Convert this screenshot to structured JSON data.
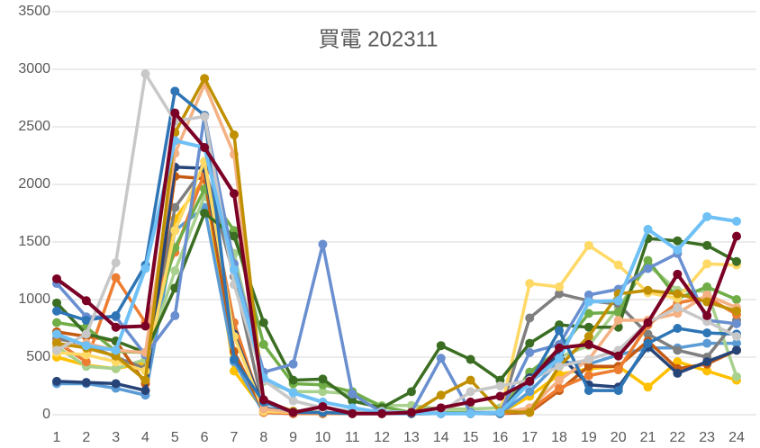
{
  "chart_data": {
    "type": "line",
    "title": "買電 202311",
    "categories": [
      1,
      2,
      3,
      4,
      5,
      6,
      7,
      8,
      9,
      10,
      11,
      12,
      13,
      14,
      15,
      16,
      17,
      18,
      19,
      20,
      21,
      22,
      23,
      24
    ],
    "ylim": [
      0,
      3500
    ],
    "yticks": [
      0,
      500,
      1000,
      1500,
      2000,
      2500,
      3000,
      3500
    ],
    "grid": true,
    "series": [
      {
        "color": "#ffc000",
        "values": [
          500,
          430,
          400,
          450,
          1700,
          2050,
          380,
          40,
          10,
          10,
          10,
          10,
          10,
          10,
          10,
          10,
          160,
          350,
          400,
          420,
          240,
          460,
          380,
          300
        ]
      },
      {
        "color": "#5b9bd5",
        "values": [
          270,
          270,
          230,
          170,
          1600,
          1800,
          460,
          20,
          10,
          10,
          10,
          10,
          10,
          10,
          10,
          10,
          200,
          460,
          440,
          520,
          580,
          580,
          620,
          620
        ]
      },
      {
        "color": "#a9d18e",
        "values": [
          590,
          420,
          400,
          480,
          1250,
          1900,
          1400,
          290,
          200,
          200,
          180,
          80,
          80,
          50,
          50,
          60,
          350,
          500,
          600,
          930,
          1300,
          1080,
          1070,
          330
        ]
      },
      {
        "color": "#7f7f7f",
        "values": [
          660,
          610,
          500,
          400,
          1800,
          2150,
          1200,
          50,
          20,
          20,
          10,
          10,
          10,
          10,
          10,
          20,
          840,
          1050,
          990,
          960,
          700,
          560,
          500,
          820
        ]
      },
      {
        "color": "#c55a11",
        "values": [
          720,
          680,
          640,
          270,
          2070,
          2050,
          550,
          30,
          10,
          10,
          10,
          10,
          10,
          10,
          10,
          10,
          20,
          210,
          420,
          420,
          640,
          400,
          440,
          560
        ]
      },
      {
        "color": "#ed7d31",
        "values": [
          630,
          460,
          1190,
          800,
          1410,
          2100,
          800,
          20,
          10,
          10,
          10,
          10,
          10,
          10,
          10,
          10,
          40,
          230,
          340,
          390,
          780,
          970,
          1020,
          870
        ]
      },
      {
        "color": "#70ad47",
        "values": [
          800,
          760,
          550,
          540,
          1450,
          1960,
          1600,
          610,
          270,
          260,
          200,
          70,
          20,
          20,
          20,
          20,
          370,
          560,
          880,
          890,
          1340,
          1010,
          1110,
          1000
        ]
      },
      {
        "color": "#264478",
        "values": [
          290,
          280,
          270,
          210,
          2150,
          2140,
          700,
          60,
          20,
          20,
          10,
          10,
          10,
          10,
          10,
          20,
          320,
          520,
          260,
          240,
          590,
          360,
          460,
          560
        ]
      },
      {
        "color": "#ffd966",
        "values": [
          540,
          520,
          460,
          380,
          1600,
          2200,
          680,
          30,
          20,
          20,
          10,
          10,
          10,
          10,
          10,
          10,
          1140,
          1110,
          1470,
          1300,
          1060,
          1010,
          1310,
          1300
        ]
      },
      {
        "color": "#3b6e22",
        "values": [
          970,
          700,
          640,
          540,
          1100,
          1750,
          1550,
          800,
          300,
          310,
          120,
          60,
          200,
          600,
          480,
          300,
          620,
          780,
          760,
          760,
          1530,
          1510,
          1470,
          1330
        ]
      },
      {
        "color": "#6a8fd0",
        "values": [
          1140,
          850,
          850,
          520,
          860,
          2600,
          1310,
          370,
          440,
          1480,
          180,
          20,
          20,
          490,
          20,
          20,
          540,
          610,
          1040,
          1090,
          1270,
          1400,
          820,
          790
        ]
      },
      {
        "color": "#f4b183",
        "values": [
          580,
          620,
          560,
          540,
          2270,
          2870,
          2260,
          50,
          20,
          20,
          10,
          10,
          10,
          10,
          10,
          20,
          60,
          300,
          480,
          820,
          820,
          880,
          1040,
          930
        ]
      },
      {
        "color": "#c09000",
        "values": [
          620,
          580,
          510,
          300,
          2450,
          2920,
          2430,
          120,
          30,
          20,
          10,
          10,
          10,
          170,
          300,
          30,
          20,
          420,
          680,
          1050,
          1080,
          1050,
          980,
          900
        ]
      },
      {
        "color": "#2e75b6",
        "values": [
          900,
          820,
          860,
          1300,
          2810,
          2600,
          480,
          110,
          20,
          20,
          10,
          10,
          10,
          10,
          10,
          10,
          280,
          730,
          210,
          210,
          620,
          750,
          710,
          700
        ]
      },
      {
        "color": "#c8c8c8",
        "values": [
          560,
          700,
          1320,
          2960,
          2550,
          2590,
          1130,
          300,
          120,
          60,
          30,
          30,
          20,
          20,
          200,
          250,
          300,
          420,
          480,
          560,
          800,
          930,
          810,
          680
        ]
      },
      {
        "color": "#6ec0f5",
        "values": [
          700,
          600,
          560,
          1270,
          2380,
          2320,
          1260,
          320,
          190,
          110,
          60,
          20,
          20,
          10,
          10,
          20,
          280,
          490,
          980,
          990,
          1610,
          1430,
          1720,
          1680
        ]
      },
      {
        "color": "#7b0025",
        "values": [
          1180,
          990,
          760,
          770,
          2620,
          2320,
          1920,
          130,
          20,
          70,
          10,
          10,
          20,
          60,
          110,
          160,
          290,
          580,
          610,
          510,
          800,
          1220,
          860,
          1550
        ]
      }
    ]
  }
}
